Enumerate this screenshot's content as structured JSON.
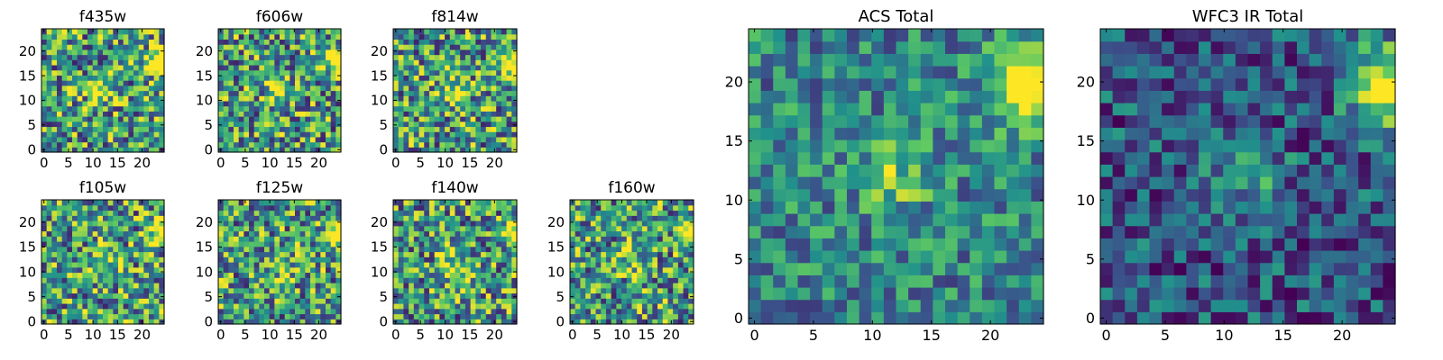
{
  "chart_data": [
    {
      "type": "heatmap",
      "title": "f435w",
      "xlim": [
        0,
        24
      ],
      "ylim": [
        0,
        24
      ],
      "xticks": [
        "0",
        "5",
        "10",
        "15",
        "20"
      ],
      "yticks": [
        "0",
        "5",
        "10",
        "15",
        "20"
      ],
      "grid": "24x24",
      "colormap": "viridis",
      "hotspot": "right edge near y=17",
      "seed": 11
    },
    {
      "type": "heatmap",
      "title": "f606w",
      "xlim": [
        0,
        24
      ],
      "ylim": [
        0,
        24
      ],
      "xticks": [
        "0",
        "5",
        "10",
        "15",
        "20"
      ],
      "yticks": [
        "0",
        "5",
        "10",
        "15",
        "20"
      ],
      "grid": "24x24",
      "colormap": "viridis",
      "hotspot": "right edge near y=17",
      "seed": 23
    },
    {
      "type": "heatmap",
      "title": "f814w",
      "xlim": [
        0,
        24
      ],
      "ylim": [
        0,
        24
      ],
      "xticks": [
        "0",
        "5",
        "10",
        "15",
        "20"
      ],
      "yticks": [
        "0",
        "5",
        "10",
        "15",
        "20"
      ],
      "grid": "24x24",
      "colormap": "viridis",
      "hotspot": "right edge near y=17",
      "seed": 37
    },
    {
      "type": "heatmap",
      "title": "f105w",
      "xlim": [
        0,
        24
      ],
      "ylim": [
        0,
        24
      ],
      "xticks": [
        "0",
        "5",
        "10",
        "15",
        "20"
      ],
      "yticks": [
        "0",
        "5",
        "10",
        "15",
        "20"
      ],
      "grid": "24x24",
      "colormap": "viridis",
      "hotspot": "right edge near y=17",
      "seed": 41
    },
    {
      "type": "heatmap",
      "title": "f125w",
      "xlim": [
        0,
        24
      ],
      "ylim": [
        0,
        24
      ],
      "xticks": [
        "0",
        "5",
        "10",
        "15",
        "20"
      ],
      "yticks": [
        "0",
        "5",
        "10",
        "15",
        "20"
      ],
      "grid": "24x24",
      "colormap": "viridis",
      "hotspot": "right edge near y=17",
      "seed": 53
    },
    {
      "type": "heatmap",
      "title": "f140w",
      "xlim": [
        0,
        24
      ],
      "ylim": [
        0,
        24
      ],
      "xticks": [
        "0",
        "5",
        "10",
        "15",
        "20"
      ],
      "yticks": [
        "0",
        "5",
        "10",
        "15",
        "20"
      ],
      "grid": "24x24",
      "colormap": "viridis",
      "hotspot": "right edge near y=17",
      "seed": 67
    },
    {
      "type": "heatmap",
      "title": "f160w",
      "xlim": [
        0,
        24
      ],
      "ylim": [
        0,
        24
      ],
      "xticks": [
        "0",
        "5",
        "10",
        "15",
        "20"
      ],
      "yticks": [
        "0",
        "5",
        "10",
        "15",
        "20"
      ],
      "grid": "24x24",
      "colormap": "viridis",
      "hotspot": "right edge near y=17",
      "seed": 79
    },
    {
      "type": "heatmap",
      "title": "ACS Total",
      "xlim": [
        0,
        24
      ],
      "ylim": [
        0,
        24
      ],
      "xticks": [
        "0",
        "5",
        "10",
        "15",
        "20"
      ],
      "yticks": [
        "0",
        "5",
        "10",
        "15",
        "20"
      ],
      "grid": "24x24",
      "colormap": "viridis",
      "hotspot": "right edge near y=19",
      "seed": 97
    },
    {
      "type": "heatmap",
      "title": "WFC3 IR Total",
      "xlim": [
        0,
        24
      ],
      "ylim": [
        0,
        24
      ],
      "xticks": [
        "0",
        "5",
        "10",
        "15",
        "20"
      ],
      "yticks": [
        "0",
        "5",
        "10",
        "15",
        "20"
      ],
      "grid": "24x24",
      "colormap": "viridis",
      "hotspot": "right edge near y=19",
      "seed": 113
    }
  ],
  "colors": {
    "viridis": [
      "#440154",
      "#3b528b",
      "#21918c",
      "#5ec962",
      "#fde725"
    ],
    "axes": "#000000",
    "background": "#ffffff"
  }
}
